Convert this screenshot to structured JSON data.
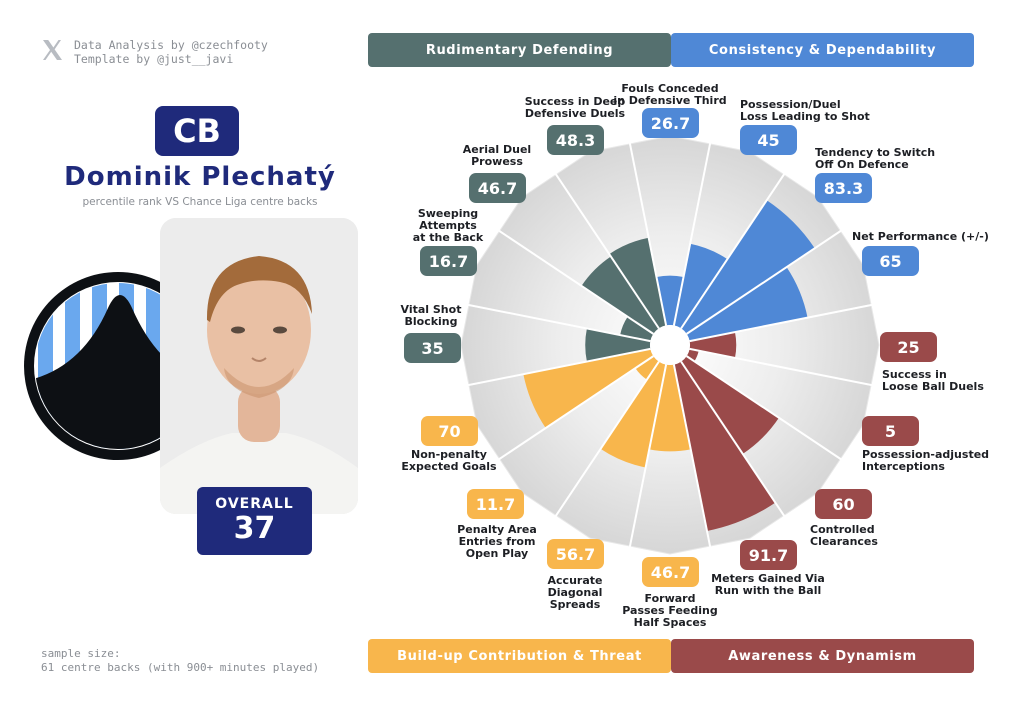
{
  "credits": [
    "Data Analysis by @czechfooty",
    "Template by @just__javi"
  ],
  "player": {
    "position": "CB",
    "name": "Dominik Plechatý",
    "subtitle": "percentile rank VS Chance Liga centre backs",
    "overall_label": "OVERALL",
    "overall_value": "37"
  },
  "sample_size": [
    "sample size:",
    "61 centre backs (with 900+ minutes played)"
  ],
  "categories": [
    {
      "name": "Rudimentary Defending",
      "color": "#55706f"
    },
    {
      "name": "Consistency & Dependability",
      "color": "#4f88d6"
    },
    {
      "name": "Build-up Contribution & Threat",
      "color": "#f8b64c"
    },
    {
      "name": "Awareness & Dynamism",
      "color": "#9a4a4a"
    }
  ],
  "colors": {
    "navy": "#1f2a7b",
    "ring_light": "#ececec",
    "ring_dark": "#d2d2d2",
    "club_blue": "#6aa8ee"
  },
  "chart_data": {
    "type": "polar_bar",
    "title": "Dominik Plechatý percentile rank VS Chance Liga centre backs",
    "range": [
      0,
      100
    ],
    "metrics": [
      {
        "label": "Fouls Conceded in Defensive Third",
        "value": 26.7,
        "category": "Consistency & Dependability",
        "color": "#4f88d6"
      },
      {
        "label": "Possession/Duel Loss Leading to Shot",
        "value": 45,
        "category": "Consistency & Dependability",
        "color": "#4f88d6"
      },
      {
        "label": "Tendency to Switch Off On Defence",
        "value": 83.3,
        "category": "Consistency & Dependability",
        "color": "#4f88d6"
      },
      {
        "label": "Net Performance (+/-)",
        "value": 65,
        "category": "Consistency & Dependability",
        "color": "#4f88d6"
      },
      {
        "label": "Success in Loose Ball Duels",
        "value": 25,
        "category": "Awareness & Dynamism",
        "color": "#9a4a4a"
      },
      {
        "label": "Possession-adjusted Interceptions",
        "value": 5,
        "category": "Awareness & Dynamism",
        "color": "#9a4a4a"
      },
      {
        "label": "Controlled Clearances",
        "value": 60,
        "category": "Awareness & Dynamism",
        "color": "#9a4a4a"
      },
      {
        "label": "Meters Gained Via Run with the Ball",
        "value": 91.7,
        "category": "Awareness & Dynamism",
        "color": "#9a4a4a"
      },
      {
        "label": "Forward Passes Feeding Half Spaces",
        "value": 46.7,
        "category": "Build-up Contribution & Threat",
        "color": "#f8b64c"
      },
      {
        "label": "Accurate Diagonal Spreads",
        "value": 56.7,
        "category": "Build-up Contribution & Threat",
        "color": "#f8b64c"
      },
      {
        "label": "Penalty Area Entries from Open Play",
        "value": 11.7,
        "category": "Build-up Contribution & Threat",
        "color": "#f8b64c"
      },
      {
        "label": "Non-penalty Expected Goals",
        "value": 70,
        "category": "Build-up Contribution & Threat",
        "color": "#f8b64c"
      },
      {
        "label": "Vital Shot Blocking",
        "value": 35,
        "category": "Rudimentary Defending",
        "color": "#55706f"
      },
      {
        "label": "Sweeping Attempts at the Back",
        "value": 16.7,
        "category": "Rudimentary Defending",
        "color": "#55706f"
      },
      {
        "label": "Aerial Duel Prowess",
        "value": 46.7,
        "category": "Rudimentary Defending",
        "color": "#55706f"
      },
      {
        "label": "Success in Deep Defensive Duels",
        "value": 48.3,
        "category": "Rudimentary Defending",
        "color": "#55706f"
      }
    ]
  }
}
